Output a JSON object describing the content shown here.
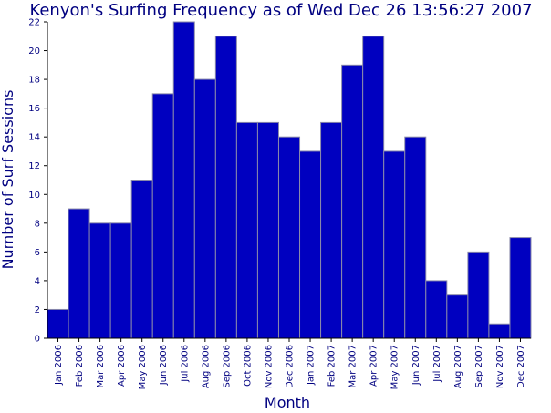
{
  "colors": {
    "bar_fill": "#0000c0",
    "bar_stroke": "#8a8aaa",
    "text": "#000080",
    "axis": "#000000"
  },
  "chart_data": {
    "type": "bar",
    "title": "Kenyon's Surfing Frequency as of Wed Dec 26 13:56:27 2007",
    "xlabel": "Month",
    "ylabel": "Number of Surf Sessions",
    "ylim": [
      0,
      22
    ],
    "yticks": [
      0,
      2,
      4,
      6,
      8,
      10,
      12,
      14,
      16,
      18,
      20,
      22
    ],
    "grid": false,
    "categories": [
      "Jan 2006",
      "Feb 2006",
      "Mar 2006",
      "Apr 2006",
      "May 2006",
      "Jun 2006",
      "Jul 2006",
      "Aug 2006",
      "Sep 2006",
      "Oct 2006",
      "Nov 2006",
      "Dec 2006",
      "Jan 2007",
      "Feb 2007",
      "Mar 2007",
      "Apr 2007",
      "May 2007",
      "Jun 2007",
      "Jul 2007",
      "Aug 2007",
      "Sep 2007",
      "Nov 2007",
      "Dec 2007"
    ],
    "values": [
      2,
      9,
      8,
      8,
      11,
      17,
      22,
      18,
      21,
      15,
      15,
      14,
      13,
      15,
      19,
      21,
      13,
      14,
      4,
      3,
      6,
      1,
      7
    ]
  }
}
